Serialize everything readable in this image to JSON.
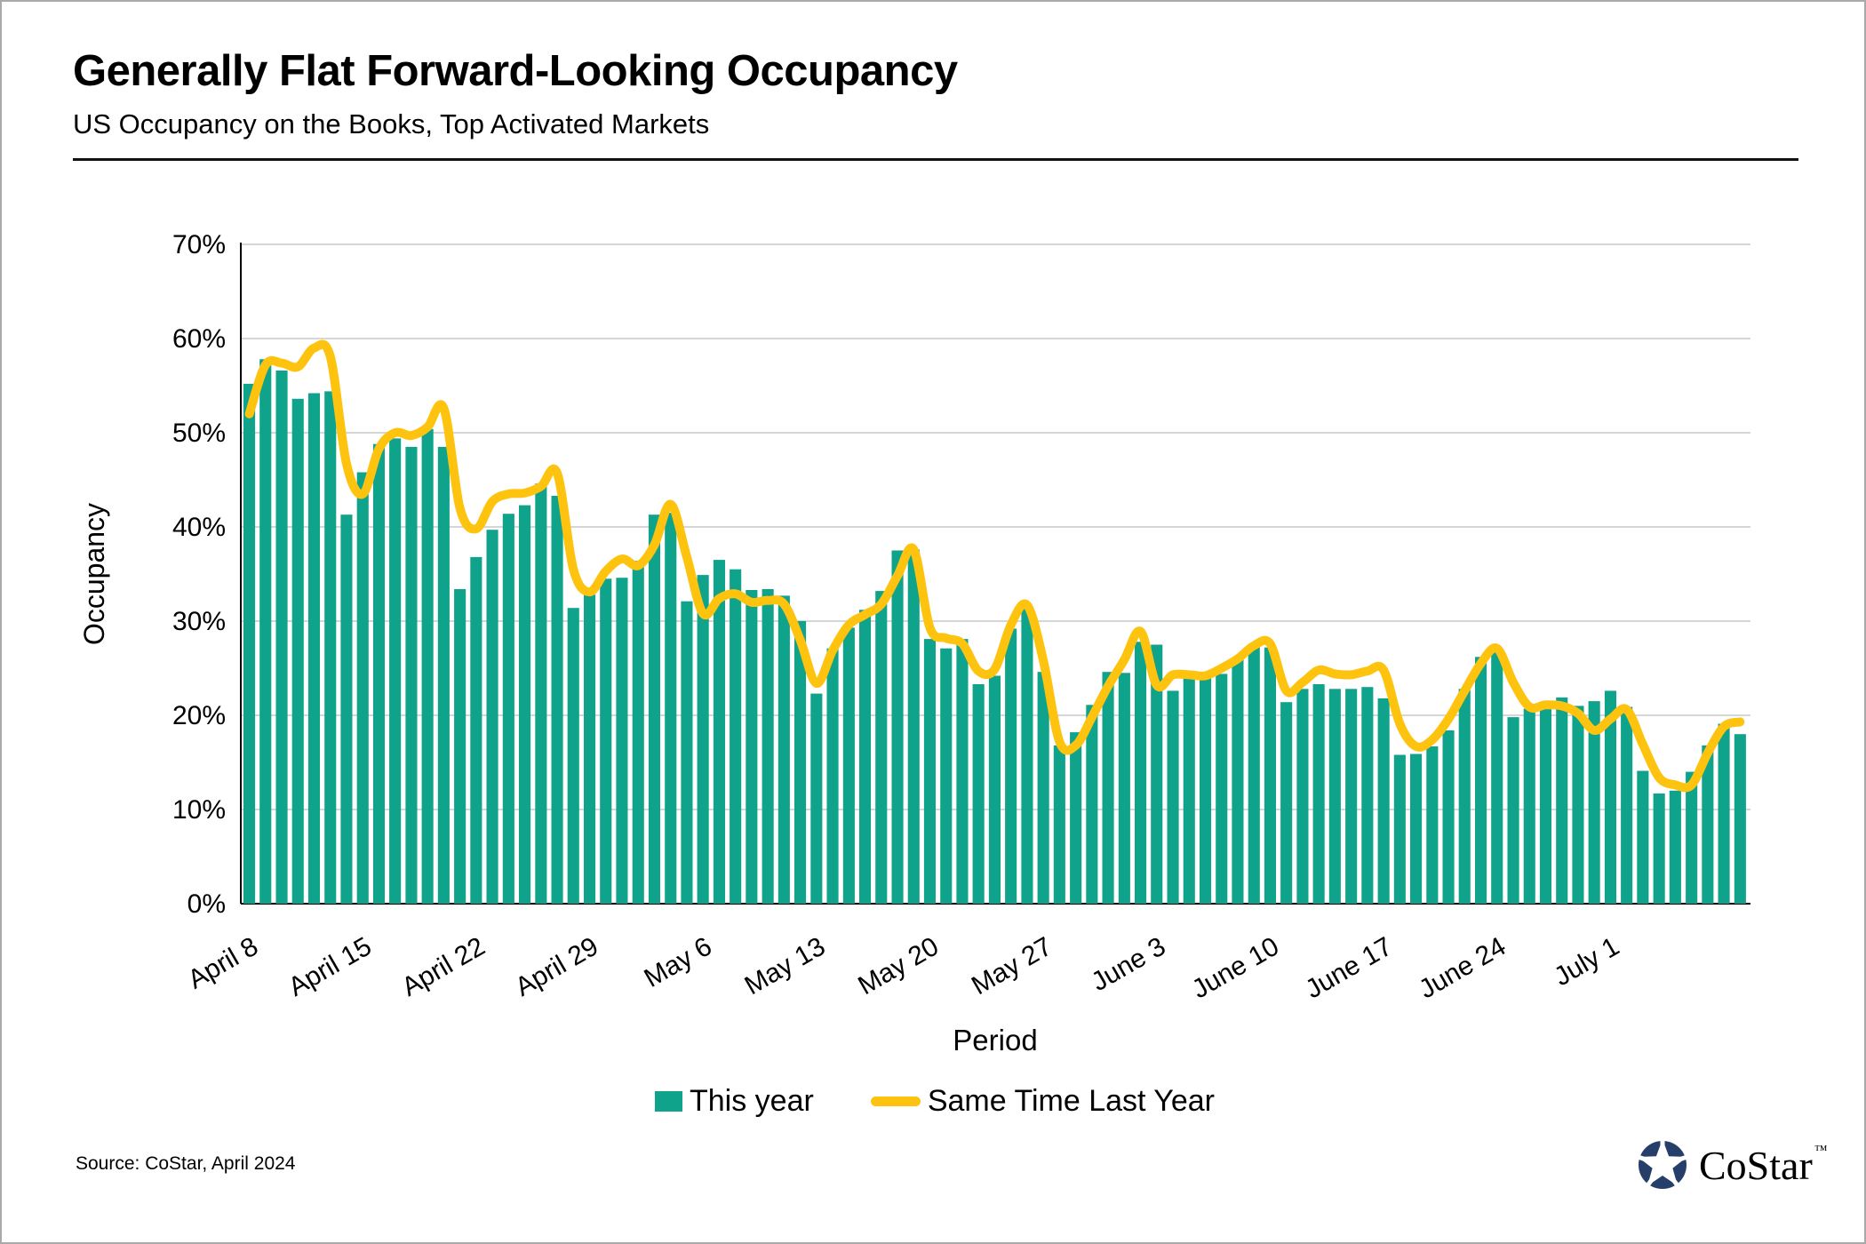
{
  "header": {
    "title": "Generally Flat Forward-Looking Occupancy",
    "subtitle": "US Occupancy on the Books, Top Activated Markets"
  },
  "chart_data": {
    "type": "bar",
    "title": "US Occupancy on the Books, Top Activated Markets",
    "xlabel": "Period",
    "ylabel": "Occupancy",
    "ylim": [
      0,
      70
    ],
    "y_tick_labels": [
      "0%",
      "10%",
      "20%",
      "30%",
      "40%",
      "50%",
      "60%",
      "70%"
    ],
    "grid": "horizontal",
    "legend_position": "bottom",
    "x_is_daily": true,
    "x_tick_positions": [
      0,
      7,
      14,
      21,
      28,
      35,
      42,
      49,
      56,
      63,
      70,
      77,
      84
    ],
    "x_tick_labels": [
      "April 8",
      "April 15",
      "April 22",
      "April 29",
      "May 6",
      "May 13",
      "May 20",
      "May 27",
      "June 3",
      "June 10",
      "June 17",
      "June 24",
      "July 1"
    ],
    "series": [
      {
        "name": "This year",
        "type": "bar",
        "color": "#0FA38B",
        "values": [
          55.2,
          57.8,
          56.6,
          53.6,
          54.2,
          54.4,
          41.3,
          45.8,
          48.8,
          49.4,
          48.5,
          50.4,
          48.5,
          33.4,
          36.8,
          39.7,
          41.4,
          42.3,
          44.6,
          43.3,
          31.4,
          32.8,
          34.5,
          34.6,
          36.4,
          41.3,
          41.5,
          32.1,
          34.9,
          36.5,
          35.5,
          33.3,
          33.4,
          32.7,
          30.0,
          22.3,
          27.1,
          29.3,
          31.2,
          33.2,
          37.5,
          37.6,
          28.1,
          27.1,
          28.1,
          23.3,
          24.2,
          29.2,
          31.4,
          24.6,
          16.8,
          18.2,
          21.1,
          24.6,
          24.5,
          27.8,
          27.5,
          22.6,
          24.5,
          24.1,
          24.4,
          26.0,
          27.3,
          27.2,
          21.4,
          22.8,
          23.3,
          22.8,
          22.8,
          23.0,
          21.8,
          15.8,
          15.9,
          16.7,
          18.4,
          22.8,
          26.2,
          26.8,
          19.8,
          20.7,
          20.9,
          21.9,
          21.0,
          21.5,
          22.6,
          20.9,
          14.1,
          11.7,
          12.0,
          14.0,
          16.8,
          19.1,
          18.0
        ]
      },
      {
        "name": "Same Time Last Year",
        "type": "line",
        "color": "#FEC30F",
        "values": [
          52.0,
          57.2,
          57.4,
          57.0,
          59.0,
          58.1,
          46.7,
          43.5,
          48.3,
          50.0,
          49.7,
          50.6,
          52.6,
          42.0,
          39.8,
          42.7,
          43.5,
          43.6,
          44.3,
          45.7,
          35.5,
          33.1,
          35.3,
          36.6,
          35.9,
          38.1,
          42.4,
          36.8,
          30.8,
          32.4,
          32.9,
          32.0,
          32.2,
          31.8,
          28.0,
          23.4,
          26.9,
          29.6,
          30.7,
          31.8,
          34.8,
          37.6,
          29.3,
          28.2,
          27.6,
          24.7,
          24.9,
          29.6,
          31.7,
          25.8,
          17.2,
          16.8,
          19.8,
          23.1,
          25.9,
          28.9,
          23.2,
          24.3,
          24.3,
          24.2,
          25.0,
          26.0,
          27.4,
          27.6,
          22.6,
          23.5,
          24.8,
          24.4,
          24.3,
          24.7,
          24.8,
          19.1,
          16.7,
          17.4,
          19.6,
          22.6,
          25.5,
          27.1,
          23.5,
          20.9,
          21.1,
          21.0,
          20.2,
          18.4,
          19.6,
          20.6,
          16.9,
          13.4,
          12.6,
          12.6,
          16.0,
          18.8,
          19.3
        ]
      }
    ],
    "colors": {
      "bar": "#0FA38B",
      "line": "#FEC30F",
      "gridline": "#D6D6D6",
      "axis": "#000000"
    }
  },
  "legend": {
    "this_year_label": "This year",
    "last_year_label": "Same Time Last Year"
  },
  "footer": {
    "source": "Source: CoStar, April 2024",
    "logo_text": "CoStar",
    "logo_tm": "™",
    "logo_color": "#263F6A"
  }
}
